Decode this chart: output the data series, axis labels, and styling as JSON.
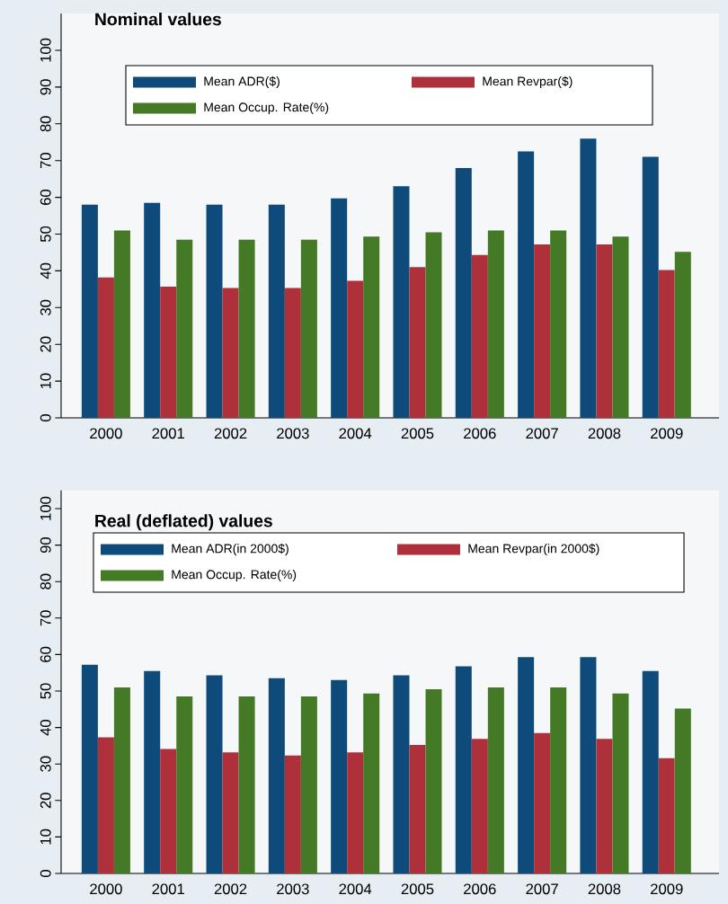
{
  "chart_data": [
    {
      "type": "bar",
      "title": "Nominal values",
      "categories": [
        "2000",
        "2001",
        "2002",
        "2003",
        "2004",
        "2005",
        "2006",
        "2007",
        "2008",
        "2009"
      ],
      "series": [
        {
          "name": "Mean ADR($)",
          "color": "#0e4a7a",
          "values": [
            58,
            58.5,
            58,
            58,
            59.7,
            63,
            68,
            72.5,
            76,
            71
          ]
        },
        {
          "name": "Mean Revpar($)",
          "color": "#ae303b",
          "values": [
            38.2,
            35.7,
            35.3,
            35.3,
            37.3,
            41,
            44.3,
            47.2,
            47.2,
            40.2
          ]
        },
        {
          "name": "Mean Occup. Rate(%)",
          "color": "#447a25",
          "values": [
            51,
            48.5,
            48.5,
            48.5,
            49.3,
            50.5,
            51,
            51,
            49.3,
            45.2
          ]
        }
      ],
      "ylim": [
        0,
        110
      ],
      "yticks": [
        0,
        10,
        20,
        30,
        40,
        50,
        60,
        70,
        80,
        90,
        100
      ],
      "legend": "top",
      "grid": false
    },
    {
      "type": "bar",
      "title": "Real (deflated) values",
      "categories": [
        "2000",
        "2001",
        "2002",
        "2003",
        "2004",
        "2005",
        "2006",
        "2007",
        "2008",
        "2009"
      ],
      "series": [
        {
          "name": "Mean ADR(in 2000$)",
          "color": "#0e4a7a",
          "values": [
            57.2,
            55.5,
            54.3,
            53.5,
            53,
            54.3,
            56.8,
            59.3,
            59.3,
            55.5
          ]
        },
        {
          "name": "Mean Revpar(in 2000$)",
          "color": "#ae303b",
          "values": [
            37.3,
            34.1,
            33.2,
            32.3,
            33.2,
            35.2,
            36.9,
            38.5,
            36.9,
            31.6
          ]
        },
        {
          "name": "Mean Occup. Rate(%)",
          "color": "#447a25",
          "values": [
            51,
            48.5,
            48.5,
            48.5,
            49.3,
            50.5,
            51,
            51,
            49.3,
            45.2
          ]
        }
      ],
      "ylim": [
        0,
        105
      ],
      "yticks": [
        0,
        10,
        20,
        30,
        40,
        50,
        60,
        70,
        80,
        90,
        100
      ],
      "legend": "top",
      "grid": false
    }
  ]
}
